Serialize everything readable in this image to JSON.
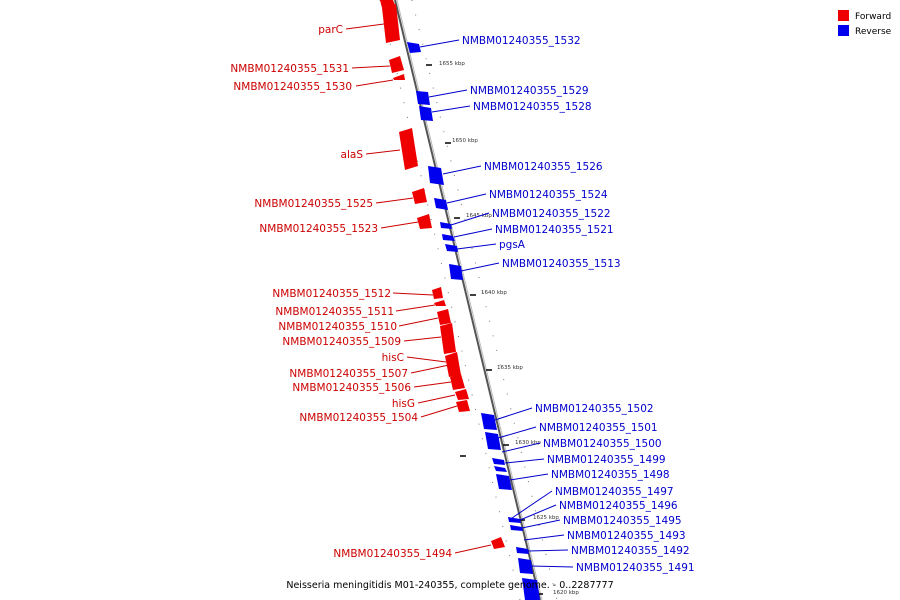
{
  "caption": "Neisseria meningitidis M01-240355, complete genome. - 0..2287777",
  "colors": {
    "forward": "#ee0000",
    "reverse": "#0000ee",
    "forward_text": "#cc0000",
    "reverse_text": "#0000cc"
  },
  "legend": {
    "forward": "Forward",
    "reverse": "Reverse"
  },
  "ticks": [
    "1655 kbp",
    "1650 kbp",
    "1645 kbp",
    "1640 kbp",
    "1635 kbp",
    "1630 kbp",
    "1625 kbp",
    "1620 kbp"
  ],
  "forward_genes": [
    "parC",
    "NMBM01240355_1531",
    "NMBM01240355_1530",
    "alaS",
    "NMBM01240355_1525",
    "NMBM01240355_1523",
    "NMBM01240355_1512",
    "NMBM01240355_1511",
    "NMBM01240355_1510",
    "NMBM01240355_1509",
    "hisC",
    "NMBM01240355_1507",
    "NMBM01240355_1506",
    "hisG",
    "NMBM01240355_1504",
    "NMBM01240355_1494"
  ],
  "reverse_genes": [
    "NMBM01240355_1532",
    "NMBM01240355_1529",
    "NMBM01240355_1528",
    "NMBM01240355_1526",
    "NMBM01240355_1524",
    "NMBM01240355_1522",
    "NMBM01240355_1521",
    "pgsA",
    "NMBM01240355_1513",
    "NMBM01240355_1502",
    "NMBM01240355_1501",
    "NMBM01240355_1500",
    "NMBM01240355_1499",
    "NMBM01240355_1498",
    "NMBM01240355_1497",
    "NMBM01240355_1496",
    "NMBM01240355_1495",
    "NMBM01240355_1493",
    "NMBM01240355_1492",
    "NMBM01240355_1491"
  ]
}
